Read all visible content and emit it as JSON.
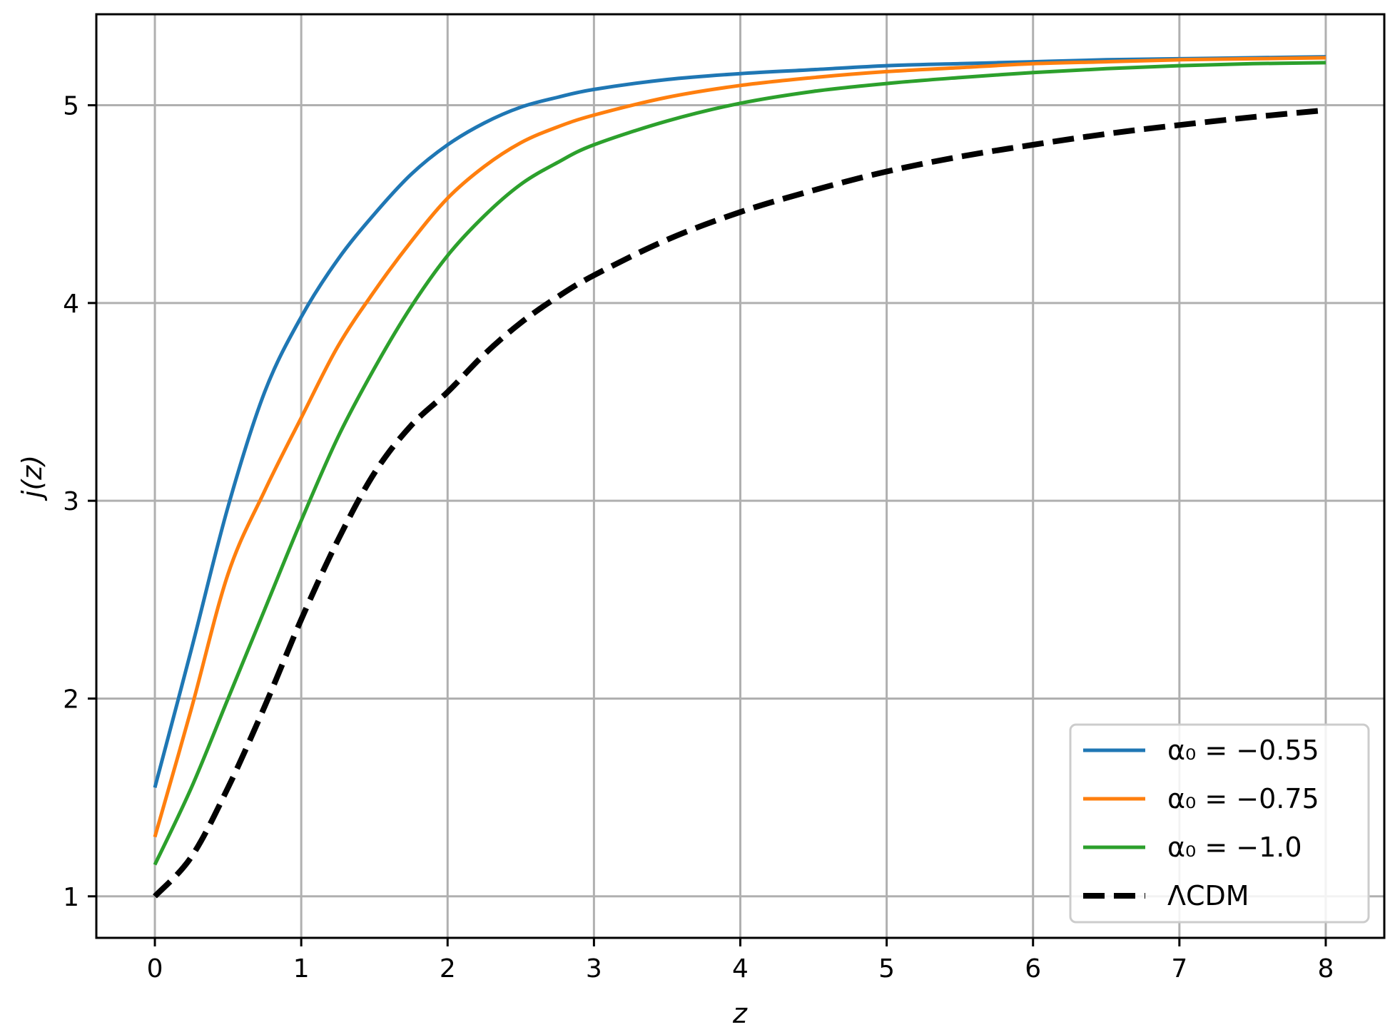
{
  "chart_data": {
    "type": "line",
    "xlabel": "z",
    "ylabel": "j(z)",
    "xlim": [
      -0.4,
      8.4
    ],
    "ylim": [
      0.79,
      5.46
    ],
    "xticks": [
      0,
      1,
      2,
      3,
      4,
      5,
      6,
      7,
      8
    ],
    "yticks": [
      1,
      2,
      3,
      4,
      5
    ],
    "grid": true,
    "legend_position": "lower-right",
    "x": [
      0,
      0.25,
      0.5,
      0.75,
      1.0,
      1.25,
      1.5,
      1.75,
      2.0,
      2.25,
      2.5,
      2.75,
      3.0,
      3.5,
      4.0,
      4.5,
      5.0,
      5.5,
      6.0,
      6.5,
      7.0,
      7.5,
      8.0
    ],
    "series": [
      {
        "name": "α₀ = −0.55",
        "color": "#1f77b4",
        "dashed": false,
        "values": [
          1.55,
          2.25,
          2.97,
          3.55,
          3.93,
          4.22,
          4.45,
          4.65,
          4.8,
          4.91,
          4.99,
          5.04,
          5.08,
          5.13,
          5.16,
          5.18,
          5.2,
          5.21,
          5.22,
          5.23,
          5.235,
          5.24,
          5.245
        ]
      },
      {
        "name": "α₀ = −0.75",
        "color": "#ff7f0e",
        "dashed": false,
        "values": [
          1.3,
          1.95,
          2.63,
          3.05,
          3.42,
          3.78,
          4.06,
          4.31,
          4.53,
          4.69,
          4.81,
          4.89,
          4.95,
          5.04,
          5.1,
          5.14,
          5.17,
          5.19,
          5.21,
          5.22,
          5.23,
          5.235,
          5.24
        ]
      },
      {
        "name": "α₀ = −1.0",
        "color": "#2ca02c",
        "dashed": false,
        "values": [
          1.16,
          1.55,
          2.0,
          2.45,
          2.9,
          3.32,
          3.67,
          3.98,
          4.24,
          4.44,
          4.6,
          4.71,
          4.8,
          4.92,
          5.01,
          5.07,
          5.11,
          5.14,
          5.165,
          5.185,
          5.2,
          5.21,
          5.215
        ]
      },
      {
        "name": "ΛCDM",
        "color": "#000000",
        "dashed": true,
        "values": [
          1.0,
          1.2,
          1.55,
          1.96,
          2.4,
          2.8,
          3.14,
          3.38,
          3.55,
          3.74,
          3.9,
          4.03,
          4.14,
          4.32,
          4.46,
          4.57,
          4.665,
          4.74,
          4.8,
          4.855,
          4.9,
          4.94,
          4.975
        ]
      }
    ]
  }
}
